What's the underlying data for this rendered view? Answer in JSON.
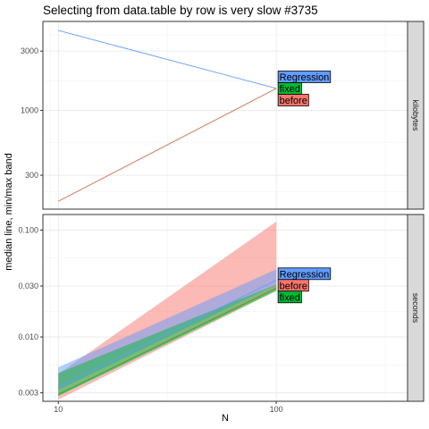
{
  "chart_data": {
    "type": "line",
    "title": "Selecting from data.table by row is very slow #3735",
    "xlabel": "N",
    "ylabel": "median line, min/max band",
    "x_scale": "log10",
    "x_ticks": [
      10,
      100
    ],
    "x_tick_labels": [
      "10",
      "100"
    ],
    "xlim": [
      8.5,
      400
    ],
    "colors": {
      "Regression": "#619CFF",
      "fixed": "#00BA38",
      "before": "#F8766D"
    },
    "panels": [
      {
        "strip": "kilobytes",
        "y_scale": "log10",
        "ylim": [
          160,
          5200
        ],
        "y_ticks": [
          300,
          1000,
          3000
        ],
        "y_tick_labels": [
          "300",
          "1000",
          "3000"
        ],
        "series": [
          {
            "name": "Regression",
            "x": [
              10,
              100
            ],
            "median": [
              4400,
              1500
            ],
            "min": [
              4400,
              1500
            ],
            "max": [
              4400,
              1500
            ]
          },
          {
            "name": "fixed",
            "x": [
              10,
              100
            ],
            "median": [
              185,
              1500
            ],
            "min": [
              185,
              1500
            ],
            "max": [
              185,
              1500
            ]
          },
          {
            "name": "before",
            "x": [
              10,
              100
            ],
            "median": [
              185,
              1500
            ],
            "min": [
              185,
              1500
            ],
            "max": [
              185,
              1500
            ]
          }
        ],
        "labels": [
          "Regression",
          "fixed",
          "before"
        ]
      },
      {
        "strip": "seconds",
        "y_scale": "log10",
        "ylim": [
          0.0025,
          0.14
        ],
        "y_ticks": [
          0.003,
          0.01,
          0.03,
          0.1
        ],
        "y_tick_labels": [
          "0.003",
          "0.010",
          "0.030",
          "0.100"
        ],
        "series": [
          {
            "name": "before",
            "x": [
              10,
              100
            ],
            "median": [
              0.0029,
              0.029
            ],
            "min": [
              0.0026,
              0.027
            ],
            "max": [
              0.0045,
              0.12
            ]
          },
          {
            "name": "Regression",
            "x": [
              10,
              100
            ],
            "median": [
              0.0034,
              0.034
            ],
            "min": [
              0.0032,
              0.031
            ],
            "max": [
              0.0052,
              0.043
            ]
          },
          {
            "name": "fixed",
            "x": [
              10,
              100
            ],
            "median": [
              0.0029,
              0.0285
            ],
            "min": [
              0.0028,
              0.027
            ],
            "max": [
              0.0046,
              0.031
            ]
          }
        ],
        "labels": [
          "Regression",
          "before",
          "fixed"
        ]
      }
    ]
  }
}
